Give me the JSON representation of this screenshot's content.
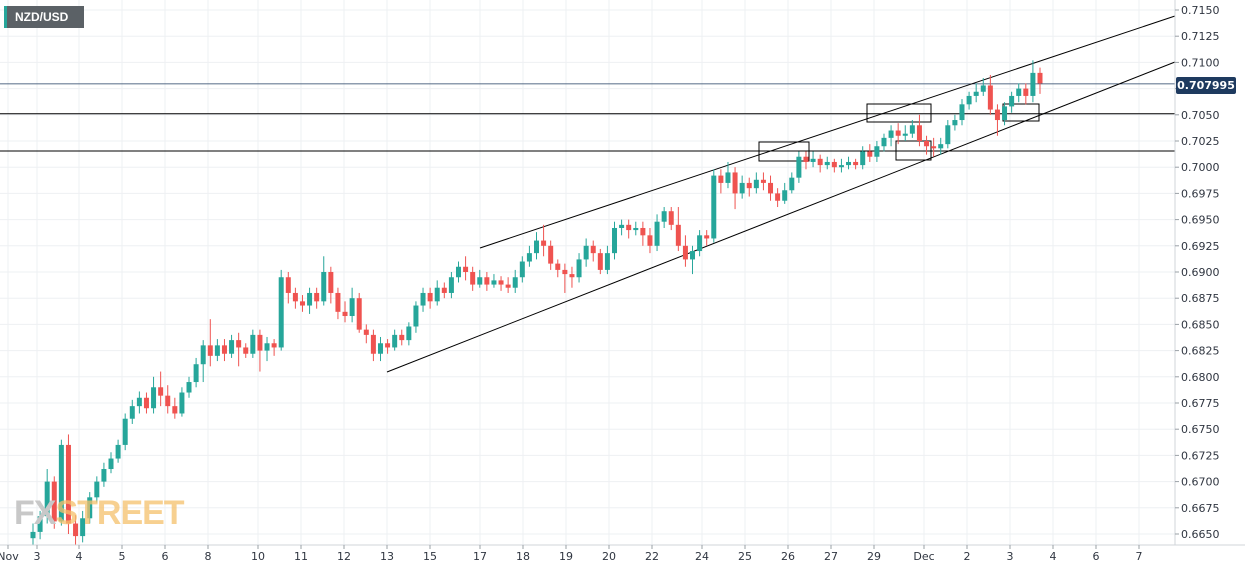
{
  "symbol": "NZD/USD",
  "current_price": "0.707995",
  "logo": {
    "part1": "FX",
    "part2": "STREET"
  },
  "colors": {
    "up": "#26a69a",
    "down": "#ef5350",
    "grid": "#eef0f3",
    "line": "#000000",
    "price_tag": "#1e3a5f"
  },
  "chart_data": {
    "type": "candlestick",
    "title": "",
    "y_ticks": [
      "0.6650",
      "0.6675",
      "0.6700",
      "0.6725",
      "0.6750",
      "0.6775",
      "0.6800",
      "0.6825",
      "0.6850",
      "0.6875",
      "0.6900",
      "0.6925",
      "0.6950",
      "0.6975",
      "0.7000",
      "0.7025",
      "0.7050",
      "0.7075",
      "0.7100",
      "0.7125",
      "0.7150"
    ],
    "ylim": [
      0.6645,
      0.7165
    ],
    "x_ticks": [
      "Nov",
      "3",
      "4",
      "5",
      "6",
      "8",
      "10",
      "11",
      "12",
      "13",
      "15",
      "17",
      "18",
      "19",
      "20",
      "22",
      "24",
      "25",
      "26",
      "27",
      "29",
      "Dec",
      "2",
      "3",
      "4",
      "6",
      "7"
    ],
    "grid": true,
    "horizontal_levels": [
      0.70795,
      0.7051,
      0.70155
    ],
    "candles": [
      [
        0.6646,
        0.6652,
        0.664,
        0.666
      ],
      [
        0.6652,
        0.6667,
        0.6645,
        0.6672
      ],
      [
        0.6667,
        0.67,
        0.666,
        0.6712
      ],
      [
        0.67,
        0.6662,
        0.6655,
        0.6705
      ],
      [
        0.6662,
        0.6735,
        0.6658,
        0.674
      ],
      [
        0.6735,
        0.666,
        0.665,
        0.6745
      ],
      [
        0.666,
        0.6648,
        0.664,
        0.6668
      ],
      [
        0.6648,
        0.6665,
        0.6642,
        0.6672
      ],
      [
        0.6665,
        0.6685,
        0.666,
        0.669
      ],
      [
        0.6685,
        0.67,
        0.668,
        0.6705
      ],
      [
        0.67,
        0.6712,
        0.6695,
        0.6718
      ],
      [
        0.6712,
        0.6722,
        0.6708,
        0.6728
      ],
      [
        0.6722,
        0.6735,
        0.6718,
        0.674
      ],
      [
        0.6735,
        0.676,
        0.673,
        0.6765
      ],
      [
        0.676,
        0.6772,
        0.6755,
        0.6778
      ],
      [
        0.6772,
        0.678,
        0.6765,
        0.6786
      ],
      [
        0.678,
        0.677,
        0.6765,
        0.6785
      ],
      [
        0.677,
        0.679,
        0.6765,
        0.68
      ],
      [
        0.679,
        0.6782,
        0.6772,
        0.6805
      ],
      [
        0.6782,
        0.6772,
        0.6765,
        0.6792
      ],
      [
        0.6772,
        0.6765,
        0.676,
        0.678
      ],
      [
        0.6765,
        0.6785,
        0.6762,
        0.679
      ],
      [
        0.6785,
        0.6795,
        0.678,
        0.68
      ],
      [
        0.6795,
        0.6812,
        0.679,
        0.6818
      ],
      [
        0.6812,
        0.683,
        0.6795,
        0.6835
      ],
      [
        0.683,
        0.682,
        0.681,
        0.6855
      ],
      [
        0.682,
        0.683,
        0.6815,
        0.6836
      ],
      [
        0.683,
        0.6822,
        0.6815,
        0.6836
      ],
      [
        0.6822,
        0.6835,
        0.6818,
        0.684
      ],
      [
        0.6835,
        0.6828,
        0.681,
        0.6842
      ],
      [
        0.6828,
        0.6822,
        0.6818,
        0.6832
      ],
      [
        0.6822,
        0.684,
        0.6818,
        0.6845
      ],
      [
        0.684,
        0.6825,
        0.6805,
        0.6845
      ],
      [
        0.6825,
        0.6832,
        0.6815,
        0.6838
      ],
      [
        0.6832,
        0.6828,
        0.682,
        0.6836
      ],
      [
        0.6828,
        0.6895,
        0.6825,
        0.6902
      ],
      [
        0.6895,
        0.688,
        0.687,
        0.69
      ],
      [
        0.688,
        0.6872,
        0.6865,
        0.6885
      ],
      [
        0.6872,
        0.6868,
        0.6862,
        0.6878
      ],
      [
        0.6868,
        0.688,
        0.686,
        0.6885
      ],
      [
        0.688,
        0.6872,
        0.6865,
        0.6885
      ],
      [
        0.6872,
        0.69,
        0.6868,
        0.6915
      ],
      [
        0.69,
        0.688,
        0.687,
        0.6905
      ],
      [
        0.688,
        0.6862,
        0.6855,
        0.6885
      ],
      [
        0.6862,
        0.6858,
        0.6852,
        0.6872
      ],
      [
        0.6858,
        0.6875,
        0.6852,
        0.6885
      ],
      [
        0.6875,
        0.6845,
        0.6842,
        0.688
      ],
      [
        0.6845,
        0.684,
        0.6832,
        0.685
      ],
      [
        0.684,
        0.6822,
        0.6815,
        0.6845
      ],
      [
        0.6822,
        0.6832,
        0.6815,
        0.6838
      ],
      [
        0.6832,
        0.6828,
        0.6822,
        0.6836
      ],
      [
        0.6828,
        0.684,
        0.6825,
        0.6845
      ],
      [
        0.684,
        0.6835,
        0.683,
        0.6845
      ],
      [
        0.6835,
        0.6848,
        0.683,
        0.6852
      ],
      [
        0.6848,
        0.6868,
        0.6842,
        0.6872
      ],
      [
        0.6868,
        0.688,
        0.6862,
        0.6885
      ],
      [
        0.688,
        0.6872,
        0.6865,
        0.6885
      ],
      [
        0.6872,
        0.6885,
        0.6868,
        0.6892
      ],
      [
        0.6885,
        0.688,
        0.6875,
        0.689
      ],
      [
        0.688,
        0.6895,
        0.6875,
        0.69
      ],
      [
        0.6895,
        0.6905,
        0.689,
        0.691
      ],
      [
        0.6905,
        0.69,
        0.6892,
        0.6915
      ],
      [
        0.69,
        0.6888,
        0.6882,
        0.6905
      ],
      [
        0.6888,
        0.6895,
        0.6885,
        0.6902
      ],
      [
        0.6895,
        0.6888,
        0.6882,
        0.69
      ],
      [
        0.6888,
        0.6892,
        0.6885,
        0.6898
      ],
      [
        0.6892,
        0.6888,
        0.6882,
        0.6896
      ],
      [
        0.6888,
        0.6885,
        0.688,
        0.6895
      ],
      [
        0.6885,
        0.6895,
        0.688,
        0.6902
      ],
      [
        0.6895,
        0.691,
        0.689,
        0.6915
      ],
      [
        0.691,
        0.6918,
        0.6905,
        0.6925
      ],
      [
        0.6918,
        0.693,
        0.6912,
        0.6938
      ],
      [
        0.693,
        0.6925,
        0.6915,
        0.6945
      ],
      [
        0.6925,
        0.6908,
        0.6902,
        0.693
      ],
      [
        0.6908,
        0.6902,
        0.6895,
        0.6912
      ],
      [
        0.6902,
        0.6898,
        0.688,
        0.6908
      ],
      [
        0.6898,
        0.6895,
        0.6885,
        0.6905
      ],
      [
        0.6895,
        0.6912,
        0.689,
        0.6918
      ],
      [
        0.6912,
        0.6925,
        0.6905,
        0.6932
      ],
      [
        0.6925,
        0.6918,
        0.691,
        0.693
      ],
      [
        0.6918,
        0.6902,
        0.6898,
        0.6922
      ],
      [
        0.6902,
        0.6918,
        0.6898,
        0.6925
      ],
      [
        0.6918,
        0.6942,
        0.6912,
        0.6948
      ],
      [
        0.6942,
        0.6945,
        0.6935,
        0.695
      ],
      [
        0.6945,
        0.694,
        0.6932,
        0.695
      ],
      [
        0.694,
        0.6942,
        0.6935,
        0.6948
      ],
      [
        0.6942,
        0.6935,
        0.6925,
        0.6948
      ],
      [
        0.6935,
        0.6925,
        0.6918,
        0.6942
      ],
      [
        0.6925,
        0.6948,
        0.692,
        0.6955
      ],
      [
        0.6948,
        0.6958,
        0.6942,
        0.6962
      ],
      [
        0.6958,
        0.6945,
        0.694,
        0.6962
      ],
      [
        0.6945,
        0.6925,
        0.692,
        0.6962
      ],
      [
        0.6925,
        0.6912,
        0.6905,
        0.6935
      ],
      [
        0.6912,
        0.692,
        0.6898,
        0.6925
      ],
      [
        0.692,
        0.6935,
        0.6915,
        0.694
      ],
      [
        0.6935,
        0.6932,
        0.6925,
        0.694
      ],
      [
        0.6932,
        0.6992,
        0.6928,
        0.6998
      ],
      [
        0.6992,
        0.6985,
        0.6975,
        0.6998
      ],
      [
        0.6985,
        0.6995,
        0.698,
        0.7005
      ],
      [
        0.6995,
        0.6975,
        0.696,
        0.7
      ],
      [
        0.6975,
        0.6985,
        0.697,
        0.6992
      ],
      [
        0.6985,
        0.698,
        0.6972,
        0.699
      ],
      [
        0.698,
        0.6988,
        0.6975,
        0.6995
      ],
      [
        0.6988,
        0.6985,
        0.6978,
        0.6995
      ],
      [
        0.6985,
        0.6975,
        0.6968,
        0.6992
      ],
      [
        0.6975,
        0.6968,
        0.6962,
        0.698
      ],
      [
        0.6968,
        0.6978,
        0.6965,
        0.6985
      ],
      [
        0.6978,
        0.699,
        0.6975,
        0.6995
      ],
      [
        0.699,
        0.701,
        0.6985,
        0.7015
      ],
      [
        0.701,
        0.7005,
        0.6998,
        0.7015
      ],
      [
        0.7005,
        0.7008,
        0.7,
        0.7015
      ],
      [
        0.7008,
        0.7002,
        0.6995,
        0.7012
      ],
      [
        0.7002,
        0.7005,
        0.6998,
        0.701
      ],
      [
        0.7005,
        0.7,
        0.6995,
        0.7008
      ],
      [
        0.7,
        0.7002,
        0.6995,
        0.7008
      ],
      [
        0.7002,
        0.7005,
        0.6998,
        0.701
      ],
      [
        0.7005,
        0.7002,
        0.6998,
        0.7008
      ],
      [
        0.7002,
        0.7015,
        0.6998,
        0.702
      ],
      [
        0.7015,
        0.701,
        0.7005,
        0.7022
      ],
      [
        0.701,
        0.702,
        0.7005,
        0.7025
      ],
      [
        0.702,
        0.7028,
        0.7015,
        0.7032
      ],
      [
        0.7028,
        0.7035,
        0.702,
        0.704
      ],
      [
        0.7035,
        0.703,
        0.7022,
        0.7042
      ],
      [
        0.703,
        0.7032,
        0.7025,
        0.704
      ],
      [
        0.7032,
        0.704,
        0.7028,
        0.7045
      ],
      [
        0.704,
        0.7025,
        0.702,
        0.705
      ],
      [
        0.7025,
        0.702,
        0.7012,
        0.703
      ],
      [
        0.702,
        0.7018,
        0.701,
        0.7028
      ],
      [
        0.7018,
        0.7022,
        0.7012,
        0.7028
      ],
      [
        0.7022,
        0.704,
        0.7018,
        0.7045
      ],
      [
        0.704,
        0.7045,
        0.7035,
        0.705
      ],
      [
        0.7045,
        0.706,
        0.704,
        0.7065
      ],
      [
        0.706,
        0.7068,
        0.7055,
        0.7072
      ],
      [
        0.7068,
        0.7072,
        0.7062,
        0.708
      ],
      [
        0.7072,
        0.7078,
        0.7068,
        0.7085
      ],
      [
        0.7078,
        0.7055,
        0.705,
        0.7088
      ],
      [
        0.7055,
        0.7045,
        0.703,
        0.706
      ],
      [
        0.7045,
        0.7058,
        0.704,
        0.7062
      ],
      [
        0.7058,
        0.7068,
        0.7052,
        0.7072
      ],
      [
        0.7068,
        0.7075,
        0.7062,
        0.708
      ],
      [
        0.7075,
        0.7068,
        0.706,
        0.708
      ],
      [
        0.7068,
        0.709,
        0.7062,
        0.7102
      ],
      [
        0.709,
        0.708,
        0.707,
        0.7095
      ]
    ]
  }
}
